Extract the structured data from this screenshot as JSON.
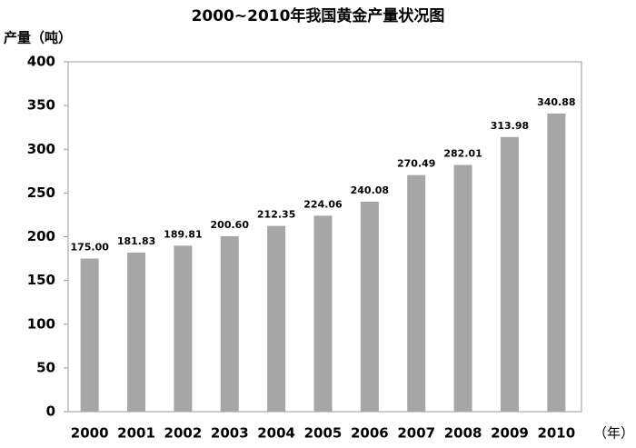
{
  "chart_data": {
    "type": "bar",
    "title": "2000~2010年我国黄金产量状况图",
    "y_label": "产量（吨）",
    "x_label": "（年）",
    "categories": [
      "2000",
      "2001",
      "2002",
      "2003",
      "2004",
      "2005",
      "2006",
      "2007",
      "2008",
      "2009",
      "2010"
    ],
    "values": [
      175,
      181.83,
      189.81,
      200.6,
      212.35,
      224.06,
      240.08,
      270.49,
      282.01,
      313.98,
      340.88
    ],
    "value_labels": [
      "175.00",
      "181.83",
      "189.81",
      "200.60",
      "212.35",
      "224.06",
      "240.08",
      "270.49",
      "282.01",
      "313.98",
      "340.88"
    ],
    "color": "#a6a6a6",
    "ylim": [
      0,
      400
    ],
    "yticks": [
      0,
      50,
      100,
      150,
      200,
      250,
      300,
      350,
      400
    ],
    "grid": false
  }
}
